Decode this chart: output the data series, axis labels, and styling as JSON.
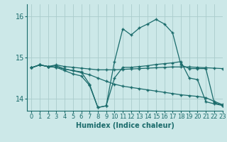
{
  "xlabel": "Humidex (Indice chaleur)",
  "bg_color": "#cce8e8",
  "grid_color": "#aacccc",
  "line_color": "#1a6b6b",
  "ylim": [
    13.7,
    16.3
  ],
  "xlim": [
    -0.5,
    23
  ],
  "yticks": [
    14,
    15,
    16
  ],
  "xticks": [
    0,
    1,
    2,
    3,
    4,
    5,
    6,
    7,
    8,
    9,
    10,
    11,
    12,
    13,
    14,
    15,
    16,
    17,
    18,
    19,
    20,
    21,
    22,
    23
  ],
  "series": [
    [
      14.75,
      14.82,
      14.78,
      14.82,
      14.78,
      14.76,
      14.74,
      14.72,
      14.7,
      14.7,
      14.7,
      14.71,
      14.72,
      14.73,
      14.74,
      14.75,
      14.76,
      14.77,
      14.77,
      14.77,
      14.76,
      14.75,
      14.74,
      14.73
    ],
    [
      14.75,
      14.82,
      14.78,
      14.76,
      14.72,
      14.68,
      14.63,
      14.58,
      14.5,
      14.42,
      14.35,
      14.3,
      14.27,
      14.24,
      14.21,
      14.18,
      14.15,
      14.12,
      14.09,
      14.07,
      14.05,
      14.02,
      13.93,
      13.85
    ],
    [
      14.75,
      14.82,
      14.78,
      14.76,
      14.68,
      14.6,
      14.55,
      14.32,
      13.78,
      13.82,
      14.5,
      14.76,
      14.76,
      14.78,
      14.8,
      14.83,
      14.85,
      14.87,
      14.9,
      14.5,
      14.46,
      13.92,
      13.87,
      13.83
    ],
    [
      14.75,
      14.82,
      14.78,
      14.8,
      14.72,
      14.68,
      14.65,
      14.35,
      13.78,
      13.82,
      14.9,
      15.7,
      15.55,
      15.72,
      15.82,
      15.93,
      15.82,
      15.6,
      14.82,
      14.73,
      14.73,
      14.73,
      13.9,
      13.83
    ]
  ]
}
